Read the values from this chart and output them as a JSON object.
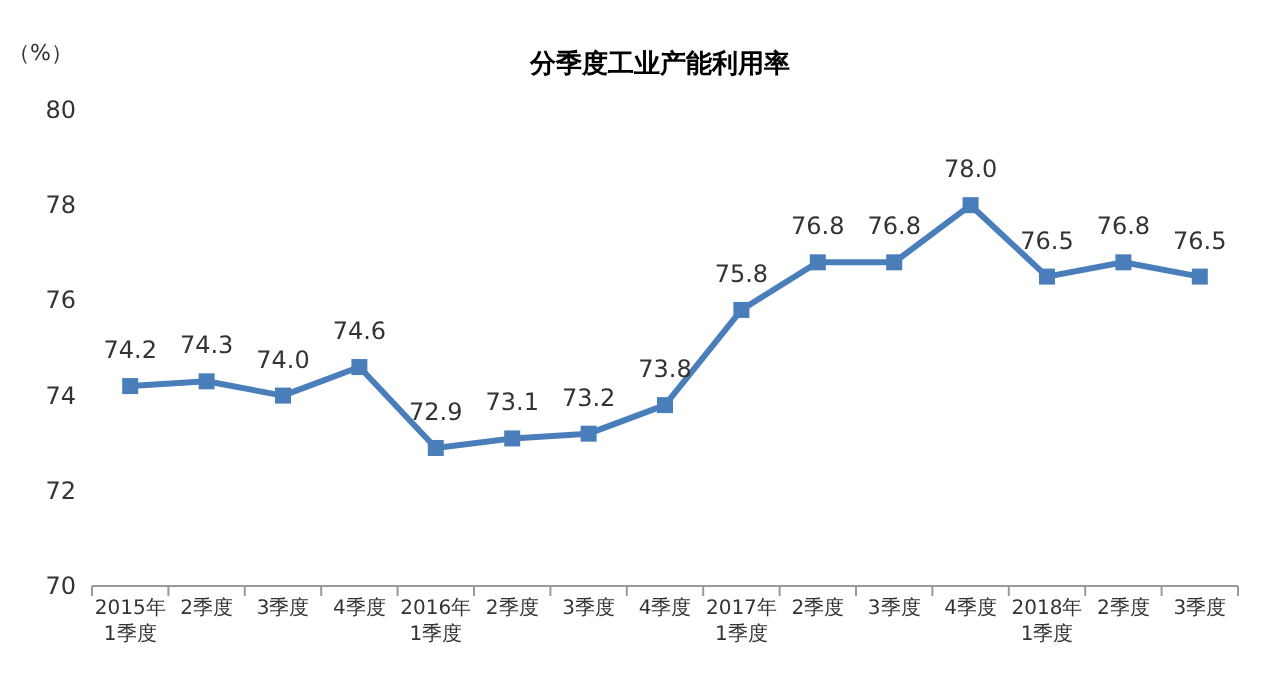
{
  "chart_data": {
    "type": "line",
    "title": "分季度工业产能利用率",
    "ylabel": "（%）",
    "categories": [
      "2015年\n1季度",
      "2季度",
      "3季度",
      "4季度",
      "2016年\n1季度",
      "2季度",
      "3季度",
      "4季度",
      "2017年\n1季度",
      "2季度",
      "3季度",
      "4季度",
      "2018年\n1季度",
      "2季度",
      "3季度"
    ],
    "series": [
      {
        "color": "#4a7ebb",
        "values": [
          74.2,
          74.3,
          74.0,
          74.6,
          72.9,
          73.1,
          73.2,
          73.8,
          75.8,
          76.8,
          76.8,
          78.0,
          76.5,
          76.8,
          76.5
        ],
        "value_labels": [
          "74.2",
          "74.3",
          "74.0",
          "74.6",
          "72.9",
          "73.1",
          "73.2",
          "73.8",
          "75.8",
          "76.8",
          "76.8",
          "78.0",
          "76.5",
          "76.8",
          "76.5"
        ]
      }
    ],
    "ylim": [
      70,
      80
    ],
    "yticks": [
      70,
      72,
      74,
      76,
      78,
      80
    ],
    "marker": "square",
    "grid": false
  }
}
